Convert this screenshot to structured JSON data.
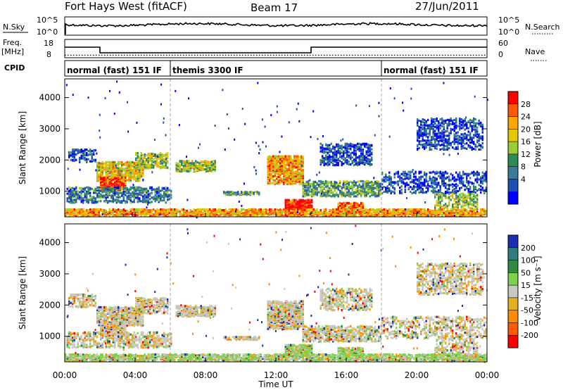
{
  "header": {
    "station": "Fort Hays West (fitACF)",
    "beam": "Beam 17",
    "date": "27/Jun/2011"
  },
  "noise_panel": {
    "left_label": "N.Sky",
    "right_label": "N.Search",
    "left_ticks": [
      "10^5",
      "10^0"
    ],
    "right_ticks": [
      "10^5",
      "10^0"
    ]
  },
  "freq_panel": {
    "left_label_1": "Freq.",
    "left_label_2": "[MHz]",
    "right_label": "Nave",
    "left_ticks": [
      "18",
      "8"
    ],
    "right_ticks": [
      "60",
      "0"
    ],
    "freq_step_hours": [
      [
        0,
        2,
        14
      ],
      [
        2,
        14,
        10
      ],
      [
        14,
        24,
        14
      ]
    ],
    "nave_level": 4
  },
  "cpid": {
    "label": "CPID",
    "modes": [
      {
        "name": "normal (fast) 151 IF",
        "start": 0,
        "end": 6
      },
      {
        "name": "themis 3300 IF",
        "start": 6,
        "end": 18
      },
      {
        "name": "normal (fast) 151 IF",
        "start": 18,
        "end": 24
      }
    ]
  },
  "x_axis": {
    "label": "Time UT",
    "ticks": [
      "00:00",
      "04:00",
      "08:00",
      "12:00",
      "16:00",
      "20:00",
      "00:00"
    ],
    "range_hours": [
      0,
      24
    ]
  },
  "power_panel": {
    "ylabel": "Slant Range [km]",
    "yticks": [
      "4000",
      "3000",
      "2000",
      "1000"
    ],
    "colorbar_label": "Power [dB]",
    "colorbar_ticks": [
      "28",
      "24",
      "20",
      "16",
      "12",
      "8",
      "4"
    ],
    "colors": [
      "#ff0000",
      "#ff5a00",
      "#ffa500",
      "#e6c800",
      "#9acd32",
      "#2e8b57",
      "#3a7a9a",
      "#1e4eb0",
      "#0000ff"
    ]
  },
  "velocity_panel": {
    "ylabel": "Slant Range [km]",
    "yticks": [
      "4000",
      "3000",
      "2000",
      "1000"
    ],
    "colorbar_label": "Velocity [m s⁻¹]",
    "colorbar_ticks": [
      "200",
      "100",
      "50",
      "15",
      "-15",
      "-50",
      "-100",
      "-200"
    ],
    "colors": [
      "#1c2fb0",
      "#2f7d7d",
      "#2e8b3f",
      "#7fd04f",
      "#c8c8c0",
      "#e6b020",
      "#ff8c00",
      "#ff5a00",
      "#ff0000"
    ]
  },
  "chart_data": {
    "type": "heatmap",
    "title": "Fort Hays West (fitACF)",
    "xlabel": "Time UT",
    "ylabel": "Slant Range [km]",
    "xlim": [
      0,
      24
    ],
    "ylim": [
      180,
      4600
    ],
    "scatter_regions": [
      {
        "t0": 0.2,
        "t1": 1.8,
        "r0": 1900,
        "r1": 2300,
        "p": 0.35,
        "lvl": 1
      },
      {
        "t0": 1.8,
        "t1": 4.5,
        "r0": 1300,
        "r1": 1900,
        "p": 0.55,
        "lvl": 5
      },
      {
        "t0": 2.0,
        "t1": 3.5,
        "r0": 1000,
        "r1": 1400,
        "p": 0.65,
        "lvl": 7
      },
      {
        "t0": 4.0,
        "t1": 5.8,
        "r0": 1700,
        "r1": 2200,
        "p": 0.5,
        "lvl": 4
      },
      {
        "t0": 0.1,
        "t1": 6.0,
        "r0": 600,
        "r1": 1100,
        "p": 0.35,
        "lvl": 2
      },
      {
        "t0": 6.3,
        "t1": 8.5,
        "r0": 1600,
        "r1": 1950,
        "p": 0.55,
        "lvl": 4
      },
      {
        "t0": 9.0,
        "t1": 11.0,
        "r0": 850,
        "r1": 950,
        "p": 0.55,
        "lvl": 3
      },
      {
        "t0": 11.5,
        "t1": 13.5,
        "r0": 1200,
        "r1": 2100,
        "p": 0.6,
        "lvl": 6
      },
      {
        "t0": 12.5,
        "t1": 14.0,
        "r0": 350,
        "r1": 700,
        "p": 0.7,
        "lvl": 8
      },
      {
        "t0": 14.5,
        "t1": 17.5,
        "r0": 1800,
        "r1": 2500,
        "p": 0.35,
        "lvl": 1
      },
      {
        "t0": 13.5,
        "t1": 18.0,
        "r0": 800,
        "r1": 1300,
        "p": 0.45,
        "lvl": 3
      },
      {
        "t0": 15.5,
        "t1": 17.0,
        "r0": 300,
        "r1": 600,
        "p": 0.6,
        "lvl": 7
      },
      {
        "t0": 20.0,
        "t1": 23.8,
        "r0": 2300,
        "r1": 3300,
        "p": 0.3,
        "lvl": 1
      },
      {
        "t0": 18.0,
        "t1": 24.0,
        "r0": 900,
        "r1": 1600,
        "p": 0.25,
        "lvl": 1
      },
      {
        "t0": 21.0,
        "t1": 23.5,
        "r0": 400,
        "r1": 900,
        "p": 0.3,
        "lvl": 4
      },
      {
        "t0": 0.0,
        "t1": 24.0,
        "r0": 180,
        "r1": 380,
        "p": 0.6,
        "lvl": 6
      }
    ]
  }
}
